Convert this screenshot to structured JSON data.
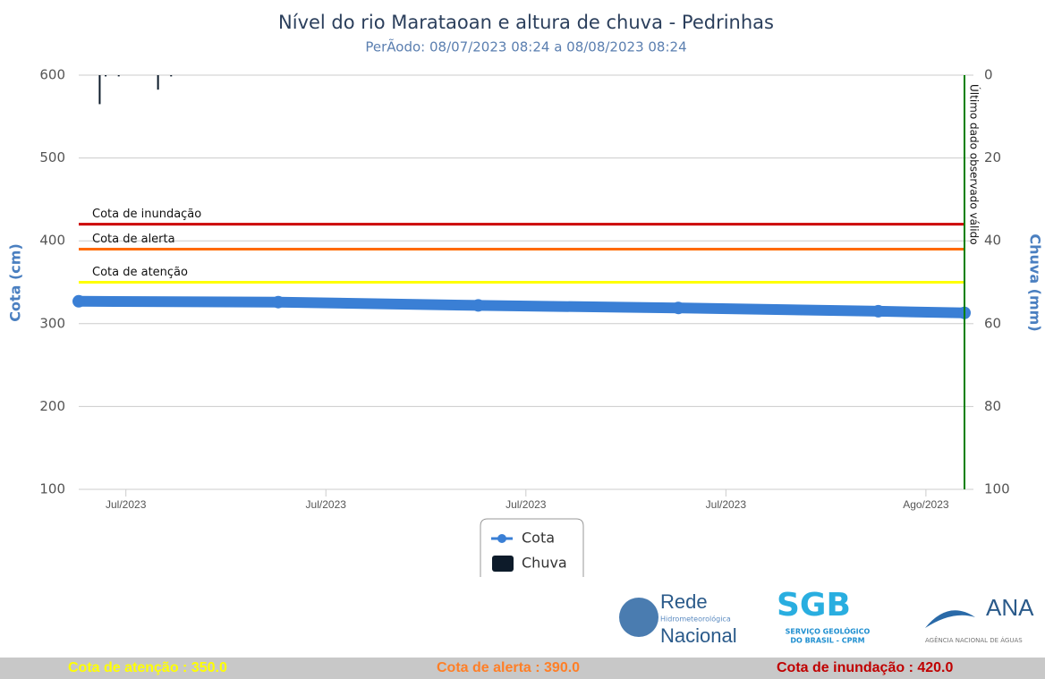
{
  "chart_data": {
    "type": "line",
    "title": "Nível do rio Marataoan e altura de chuva - Pedrinhas",
    "subtitle": "PerÃodo: 08/07/2023 08:24 a 08/08/2023 08:24",
    "ylabel": "Cota (cm)",
    "y2label": "Chuva (mm)",
    "ylim": [
      100,
      600
    ],
    "yticks": [
      100,
      200,
      300,
      400,
      500,
      600
    ],
    "y2lim": [
      0,
      100
    ],
    "y2ticks": [
      0,
      20,
      40,
      60,
      80,
      100
    ],
    "y2_reversed": true,
    "xlim": [
      "2023-07-08T08:24",
      "2023-08-08T08:24"
    ],
    "xticks": [
      {
        "value": "2023-07-10T00:00",
        "label": "Jul/2023"
      },
      {
        "value": "2023-07-17T00:00",
        "label": "Jul/2023"
      },
      {
        "value": "2023-07-24T00:00",
        "label": "Jul/2023"
      },
      {
        "value": "2023-07-31T00:00",
        "label": "Jul/2023"
      },
      {
        "value": "2023-08-07T00:00",
        "label": "Ago/2023"
      }
    ],
    "grid": true,
    "series": [
      {
        "name": "Cota",
        "color": "#3a7fd5",
        "x": [
          "2023-07-08T08:24",
          "2023-07-15T08:00",
          "2023-07-22T08:00",
          "2023-07-29T08:00",
          "2023-08-05T08:00",
          "2023-08-08T08:24"
        ],
        "values": [
          327,
          326,
          322,
          319,
          315,
          313
        ]
      },
      {
        "name": "Chuva",
        "color": "#0d1b2a",
        "axis": "y2",
        "type": "bar",
        "x": [
          "2023-07-09T02:00",
          "2023-07-09T07:00",
          "2023-07-09T18:00",
          "2023-07-11T03:00",
          "2023-07-11T14:00"
        ],
        "values": [
          7,
          0.3,
          0.3,
          3.5,
          0.3
        ]
      }
    ],
    "thresholds": [
      {
        "label": "Cota de inundação",
        "value": 420,
        "color": "#cc0000"
      },
      {
        "label": "Cota de alerta",
        "value": 390,
        "color": "#ff6a00"
      },
      {
        "label": "Cota de atenção",
        "value": 350,
        "color": "#ffff00"
      }
    ],
    "last_data": {
      "label": "Último dado observado válido",
      "x": "2023-08-08T08:24",
      "color": "#008000"
    }
  },
  "logos": {
    "rede": [
      "Rede",
      "Hidrometeorológica",
      "Nacional"
    ],
    "sgb": [
      "SGB",
      "SERVIÇO GEOLÓGICO",
      "DO BRASIL - CPRM"
    ],
    "ana": [
      "ANA",
      "AGÊNCIA NACIONAL DE ÁGUAS"
    ]
  },
  "footer": [
    "Cota de atenção : 350.0",
    "Cota de alerta : 390.0",
    "Cota de inundação : 420.0"
  ]
}
